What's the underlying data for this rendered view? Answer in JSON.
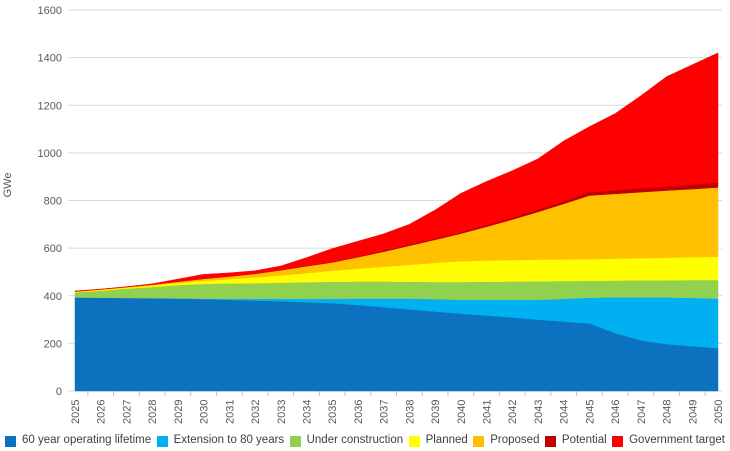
{
  "chart_data": {
    "type": "area",
    "stacked": true,
    "title": "",
    "xlabel": "",
    "ylabel": "GWe",
    "ylim": [
      0,
      1600
    ],
    "ytick_step": 200,
    "y_ticks": [
      "0",
      "200",
      "400",
      "600",
      "800",
      "1000",
      "1200",
      "1400",
      "1600"
    ],
    "grid": "horizontal",
    "legend_position": "bottom",
    "x": [
      "2025",
      "2026",
      "2027",
      "2028",
      "2029",
      "2030",
      "2031",
      "2032",
      "2033",
      "2034",
      "2035",
      "2036",
      "2037",
      "2038",
      "2039",
      "2040",
      "2041",
      "2042",
      "2043",
      "2044",
      "2045",
      "2046",
      "2047",
      "2048",
      "2049",
      "2050"
    ],
    "series": [
      {
        "name": "60 year operating lifetime",
        "color": "#0C72BF",
        "values": [
          393,
          392,
          391,
          390,
          388,
          386,
          383,
          380,
          377,
          373,
          369,
          361,
          352,
          343,
          334,
          325,
          317,
          309,
          300,
          292,
          284,
          243,
          213,
          197,
          188,
          180
        ]
      },
      {
        "name": "Extension to 80 years",
        "color": "#00B0F0",
        "values": [
          0,
          0,
          0,
          0,
          1,
          2,
          4,
          7,
          10,
          14,
          18,
          27,
          36,
          45,
          52,
          58,
          66,
          74,
          83,
          95,
          108,
          150,
          180,
          196,
          203,
          208
        ]
      },
      {
        "name": "Under construction",
        "color": "#92D050",
        "values": [
          21,
          29,
          39,
          47,
          56,
          62,
          65,
          66,
          68,
          70,
          72,
          72,
          72,
          71,
          72,
          75,
          76,
          77,
          78,
          75,
          71,
          71,
          72,
          72,
          75,
          78
        ]
      },
      {
        "name": "Planned",
        "color": "#FFFF00",
        "values": [
          3,
          4,
          4,
          6,
          8,
          13,
          18,
          24,
          30,
          38,
          46,
          54,
          62,
          71,
          80,
          87,
          89,
          90,
          91,
          91,
          91,
          92,
          93,
          95,
          96,
          98
        ]
      },
      {
        "name": "Proposed",
        "color": "#FFC000",
        "values": [
          1,
          2,
          3,
          4,
          6,
          8,
          11,
          15,
          22,
          29,
          35,
          48,
          63,
          80,
          97,
          116,
          142,
          170,
          200,
          233,
          267,
          272,
          277,
          282,
          286,
          291
        ]
      },
      {
        "name": "Potential",
        "color": "#C00000",
        "values": [
          0,
          0,
          0,
          0,
          1,
          1,
          1,
          2,
          2,
          3,
          3,
          4,
          5,
          5,
          6,
          6,
          7,
          8,
          10,
          11,
          14,
          15,
          16,
          17,
          19,
          21
        ]
      },
      {
        "name": "Government target",
        "color": "#FF0000",
        "values": [
          2,
          1,
          1,
          3,
          10,
          18,
          14,
          11,
          16,
          33,
          55,
          63,
          70,
          85,
          119,
          163,
          183,
          197,
          213,
          253,
          275,
          322,
          389,
          461,
          503,
          544
        ]
      }
    ],
    "colors": {
      "grid": "#D9D9D9",
      "axis_text": "#595959",
      "tick_mark": "#BFBFBF"
    }
  }
}
